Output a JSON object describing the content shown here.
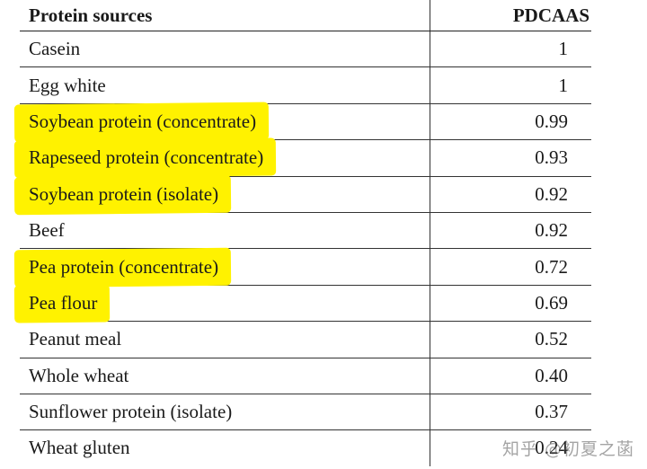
{
  "table": {
    "headers": {
      "source": "Protein sources",
      "score": "PDCAAS"
    },
    "rows": [
      {
        "source": "Casein",
        "score": "1",
        "highlighted": false
      },
      {
        "source": "Egg white",
        "score": "1",
        "highlighted": false
      },
      {
        "source": "Soybean protein (concentrate)",
        "score": "0.99",
        "highlighted": true
      },
      {
        "source": "Rapeseed protein (concentrate)",
        "score": "0.93",
        "highlighted": true
      },
      {
        "source": "Soybean protein (isolate)",
        "score": "0.92",
        "highlighted": true
      },
      {
        "source": "Beef",
        "score": "0.92",
        "highlighted": false
      },
      {
        "source": "Pea protein (concentrate)",
        "score": "0.72",
        "highlighted": true
      },
      {
        "source": "Pea flour",
        "score": "0.69",
        "highlighted": true
      },
      {
        "source": "Peanut meal",
        "score": "0.52",
        "highlighted": false
      },
      {
        "source": "Whole wheat",
        "score": "0.40",
        "highlighted": false
      },
      {
        "source": "Sunflower protein (isolate)",
        "score": "0.37",
        "highlighted": false
      },
      {
        "source": "Wheat gluten",
        "score": "0.24",
        "highlighted": false
      }
    ],
    "highlight_color": "#fff200"
  },
  "watermark": "知乎 @初夏之菡"
}
